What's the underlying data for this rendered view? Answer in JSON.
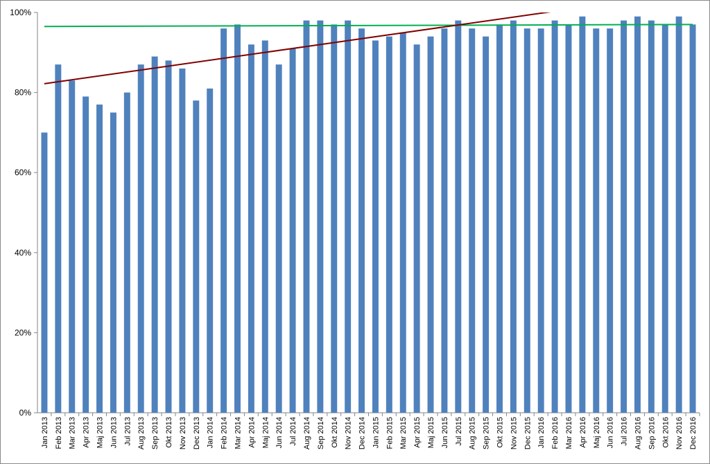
{
  "chart_data": {
    "type": "bar",
    "title": "",
    "xlabel": "",
    "ylabel": "",
    "ylim": [
      0,
      1
    ],
    "yticks": [
      {
        "value": 0,
        "label": "0%"
      },
      {
        "value": 0.2,
        "label": "20%"
      },
      {
        "value": 0.4,
        "label": "40%"
      },
      {
        "value": 0.6,
        "label": "60%"
      },
      {
        "value": 0.8,
        "label": "80%"
      },
      {
        "value": 1.0,
        "label": "100%"
      }
    ],
    "grid": false,
    "legend": "none",
    "bar_color": "#4F81BD",
    "categories": [
      "Jan 2013",
      "Feb 2013",
      "Mar 2013",
      "Apr 2013",
      "Maj 2013",
      "Jun 2013",
      "Jul 2013",
      "Aug 2013",
      "Sep 2013",
      "Okt 2013",
      "Nov 2013",
      "Dec 2013",
      "Jan 2014",
      "Feb 2014",
      "Mar 2014",
      "Apr 2014",
      "Maj 2014",
      "Jun 2014",
      "Jul 2014",
      "Aug 2014",
      "Sep 2014",
      "Okt 2014",
      "Nov 2014",
      "Dec 2014",
      "Jan 2015",
      "Feb 2015",
      "Mar 2015",
      "Apr 2015",
      "Maj 2015",
      "Jun 2015",
      "Jul 2015",
      "Aug 2015",
      "Sep 2015",
      "Okt 2015",
      "Nov 2015",
      "Dec 2015",
      "Jan 2016",
      "Feb 2016",
      "Mar 2016",
      "Apr 2016",
      "Maj 2016",
      "Jun 2016",
      "Jul 2016",
      "Aug 2016",
      "Sep 2016",
      "Okt 2016",
      "Nov 2016",
      "Dec 2016"
    ],
    "values": [
      0.7,
      0.87,
      0.83,
      0.79,
      0.77,
      0.75,
      0.8,
      0.87,
      0.89,
      0.88,
      0.86,
      0.78,
      0.81,
      0.96,
      0.97,
      0.92,
      0.93,
      0.87,
      0.91,
      0.98,
      0.98,
      0.97,
      0.98,
      0.96,
      0.93,
      0.94,
      0.95,
      0.92,
      0.94,
      0.96,
      0.98,
      0.96,
      0.94,
      0.97,
      0.98,
      0.96,
      0.96,
      0.98,
      0.97,
      0.99,
      0.96,
      0.96,
      0.98,
      0.99,
      0.98,
      0.97,
      0.99,
      0.97
    ],
    "lines": [
      {
        "kind": "reference",
        "color": "#00B050",
        "start": 0.965,
        "end": 0.97
      },
      {
        "kind": "trend",
        "color": "#7F0000",
        "start": 0.822,
        "end": 1.052
      }
    ]
  }
}
